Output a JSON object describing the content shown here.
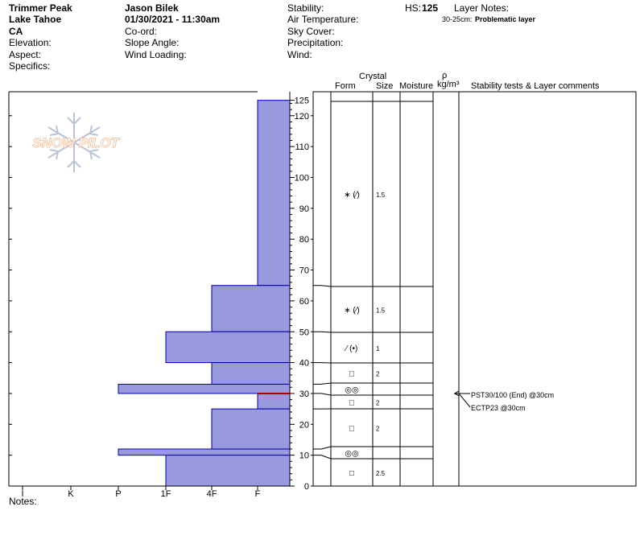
{
  "header": {
    "location": "Trimmer Peak",
    "area": "Lake Tahoe",
    "state": "CA",
    "elevation_label": "Elevation:",
    "aspect_label": "Aspect:",
    "specifics_label": "Specifics:",
    "observer": "Jason Bilek",
    "datetime": "01/30/2021 - 11:30am",
    "coord_label": "Co-ord:",
    "slope_label": "Slope Angle:",
    "wind_loading_label": "Wind Loading:",
    "stability_label": "Stability:",
    "air_temp_label": "Air Temperature:",
    "sky_label": "Sky Cover:",
    "precip_label": "Precipitation:",
    "wind_label": "Wind:",
    "hs_label": "HS:",
    "hs_value": "125",
    "layer_notes_label": "Layer Notes:",
    "layer_note_range": "30-25cm:",
    "layer_note_text": "Problematic layer"
  },
  "notes_label": "Notes:",
  "logo_text": "SNOW PILOT",
  "columns": {
    "crystal": "Crystal",
    "form": "Form",
    "size": "Size",
    "moisture": "Moisture",
    "rho": "ρ",
    "density_unit": "kg/m³",
    "stability": "Stability tests & Layer comments"
  },
  "tests": [
    "PST30/100 (End) @30cm",
    "ECTP23 @30cm"
  ],
  "colors": {
    "bar_fill": "#9999dd",
    "bar_edge": "#0000aa",
    "layer_marker": "#aa0000"
  },
  "chart_data": {
    "type": "bar",
    "orientation": "horizontal",
    "title": "",
    "ylim": [
      0,
      125
    ],
    "y_ticks": [
      0,
      10,
      20,
      30,
      40,
      50,
      60,
      70,
      80,
      90,
      100,
      110,
      120,
      125
    ],
    "x_categories": [
      "I",
      "K",
      "P",
      "1F",
      "4F",
      "F"
    ],
    "hardness_scale_min": "I",
    "hardness_scale_max": "F",
    "layers": [
      {
        "top": 125,
        "bottom": 65,
        "hardness": "F"
      },
      {
        "top": 65,
        "bottom": 50,
        "hardness": "4F"
      },
      {
        "top": 50,
        "bottom": 40,
        "hardness": "1F"
      },
      {
        "top": 40,
        "bottom": 33,
        "hardness": "4F"
      },
      {
        "top": 33,
        "bottom": 30,
        "hardness": "P"
      },
      {
        "top": 30,
        "bottom": 25,
        "hardness": "F"
      },
      {
        "top": 25,
        "bottom": 12,
        "hardness": "4F"
      },
      {
        "top": 12,
        "bottom": 10,
        "hardness": "P"
      },
      {
        "top": 10,
        "bottom": 0,
        "hardness": "1F"
      }
    ],
    "problem_layer_marker": 30,
    "crystal_rows": [
      {
        "top": 125,
        "bottom": 65,
        "form": "∗ (⁄)",
        "size": "1.5"
      },
      {
        "top": 65,
        "bottom": 50,
        "form": "∗ (⁄)",
        "size": "1.5"
      },
      {
        "top": 50,
        "bottom": 40,
        "form": "⁄ (•)",
        "size": "1"
      },
      {
        "top": 40,
        "bottom": 33,
        "form": "□",
        "size": "2"
      },
      {
        "top": 33,
        "bottom": 30,
        "form": "◎◎",
        "size": ""
      },
      {
        "top": 30,
        "bottom": 25,
        "form": "□",
        "size": "2"
      },
      {
        "top": 25,
        "bottom": 12,
        "form": "□",
        "size": "2"
      },
      {
        "top": 12,
        "bottom": 10,
        "form": "◎◎",
        "size": ""
      },
      {
        "top": 10,
        "bottom": 0,
        "form": "□",
        "size": "2.5"
      }
    ]
  }
}
